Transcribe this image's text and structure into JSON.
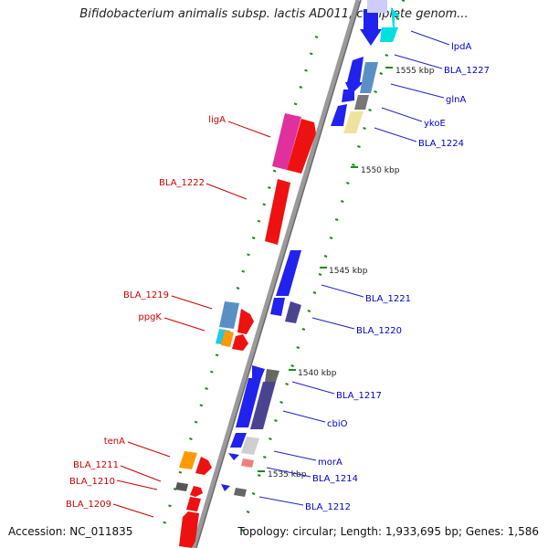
{
  "title": "Bifidobacterium animalis subsp. lactis AD011, complete genom...",
  "accession": "Accession: NC_011835",
  "footer": "Topology: circular; Length: 1,933,695 bp; Genes: 1,586",
  "scale_labels": [
    "1555 kbp",
    "1550 kbp",
    "1545 kbp",
    "1540 kbp",
    "1535 kbp"
  ],
  "genes_right": [
    "lpdA",
    "BLA_1227",
    "glnA",
    "ykoE",
    "BLA_1224",
    "BLA_1221",
    "BLA_1220",
    "BLA_1217",
    "cbiO",
    "morA",
    "BLA_1214",
    "BLA_1212"
  ],
  "genes_left": [
    "ligA",
    "BLA_1222",
    "BLA_1219",
    "ppgK",
    "tenA",
    "BLA_1211",
    "BLA_1210",
    "BLA_1209"
  ],
  "colors": {
    "forward_label": "#0000cc",
    "reverse_label": "#cc0000",
    "backbone": "#808080",
    "tick": "#1a8c1a"
  }
}
